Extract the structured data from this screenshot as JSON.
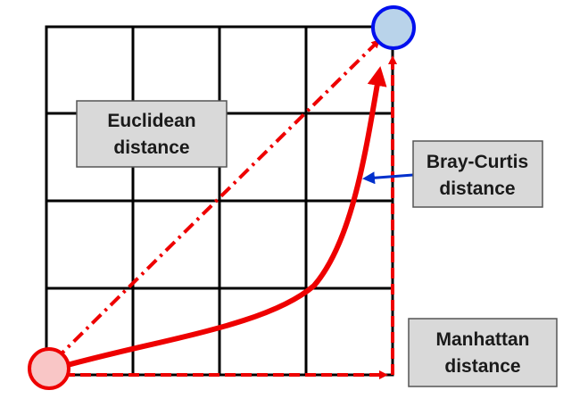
{
  "labels": {
    "euclidean": {
      "line1": "Euclidean",
      "line2": "distance"
    },
    "bray_curtis": {
      "line1": "Bray-Curtis",
      "line2": "distance"
    },
    "manhattan": {
      "line1": "Manhattan",
      "line2": "distance"
    }
  },
  "grid": {
    "rows": 4,
    "cols": 4
  },
  "colors": {
    "path": "#ee0000",
    "grid": "#000000",
    "start_fill": "#f9c6c6",
    "start_stroke": "#ee0000",
    "end_fill": "#b9d3ea",
    "end_stroke": "#0010ee",
    "pointer": "#0030cc",
    "label_fill": "#d9d9d9",
    "label_stroke": "#555555"
  }
}
